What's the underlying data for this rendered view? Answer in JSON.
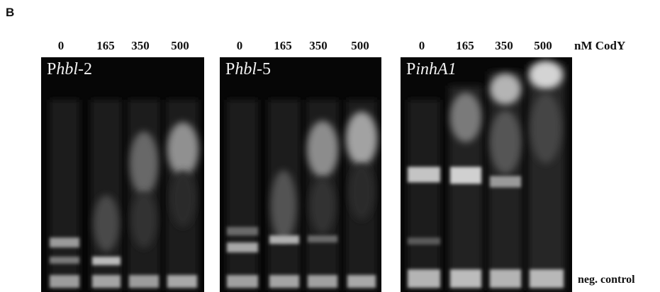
{
  "panel_letter": "B",
  "concentrations": [
    "0",
    "165",
    "350",
    "500"
  ],
  "unit_label": "nM CodY",
  "neg_control_label": "neg. control",
  "gels": [
    {
      "prefix": "P",
      "gene": "hbl",
      "suffix": "-2"
    },
    {
      "prefix": "P",
      "gene": "hbl",
      "suffix": "-5"
    },
    {
      "prefix": "P",
      "gene": "inhA1",
      "suffix": ""
    }
  ]
}
